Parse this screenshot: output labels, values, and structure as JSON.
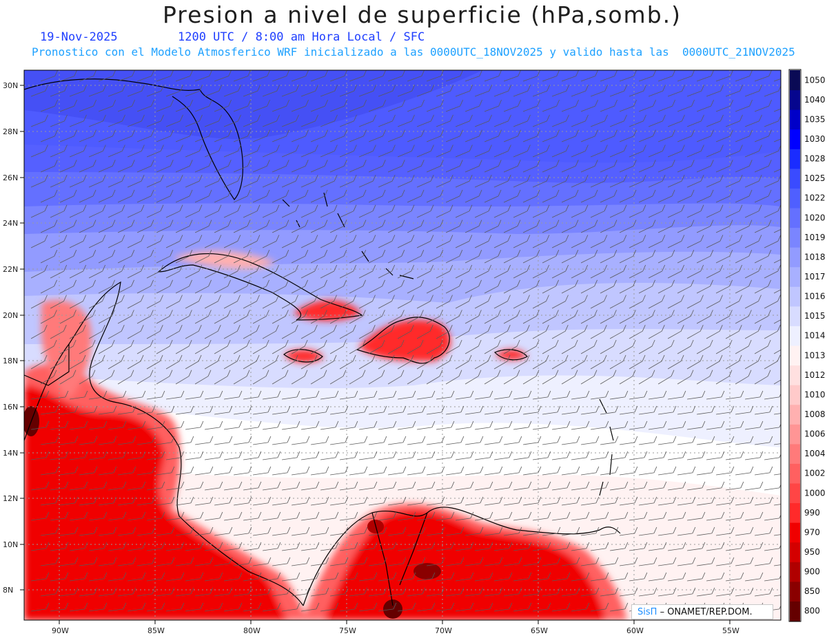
{
  "title": "Presion a nivel de superficie (hPa,somb.)",
  "date": "19-Nov-2025",
  "valid_time": "1200 UTC / 8:00 am Hora Local / SFC",
  "forecast_note": "Pronostico con el Modelo Atmosferico WRF inicializado a las 0000UTC_18NOV2025 y valido hasta las  0000UTC_21NOV2025",
  "credit": {
    "brand": "SisΠ",
    "text": "– ONAMET/REP.DOM."
  },
  "lat_labels": [
    "30N",
    "28N",
    "26N",
    "24N",
    "22N",
    "20N",
    "18N",
    "16N",
    "14N",
    "12N",
    "10N",
    "8N"
  ],
  "lon_labels": [
    "90W",
    "85W",
    "80W",
    "75W",
    "70W",
    "65W",
    "60W",
    "55W"
  ],
  "colorbar": {
    "levels": [
      "1050",
      "1040",
      "1035",
      "1030",
      "1028",
      "1025",
      "1022",
      "1020",
      "1019",
      "1018",
      "1017",
      "1016",
      "1015",
      "1014",
      "1013",
      "1012",
      "1010",
      "1008",
      "1006",
      "1004",
      "1002",
      "1000",
      "990",
      "970",
      "950",
      "900",
      "850",
      "800"
    ],
    "colors": [
      "#0a0a55",
      "#06068e",
      "#0000c8",
      "#0000ff",
      "#1a2cff",
      "#3a4bff",
      "#4f5fff",
      "#6470ff",
      "#7a85ff",
      "#929bff",
      "#a8b0ff",
      "#c0c6ff",
      "#d8dcff",
      "#eef0ff",
      "#fff2f2",
      "#ffe0e0",
      "#ffcaca",
      "#ffb0b0",
      "#ff9595",
      "#ff7a7a",
      "#ff6060",
      "#ff4545",
      "#ff2a2a",
      "#f00000",
      "#d40000",
      "#b00000",
      "#8a0000",
      "#650000"
    ]
  }
}
